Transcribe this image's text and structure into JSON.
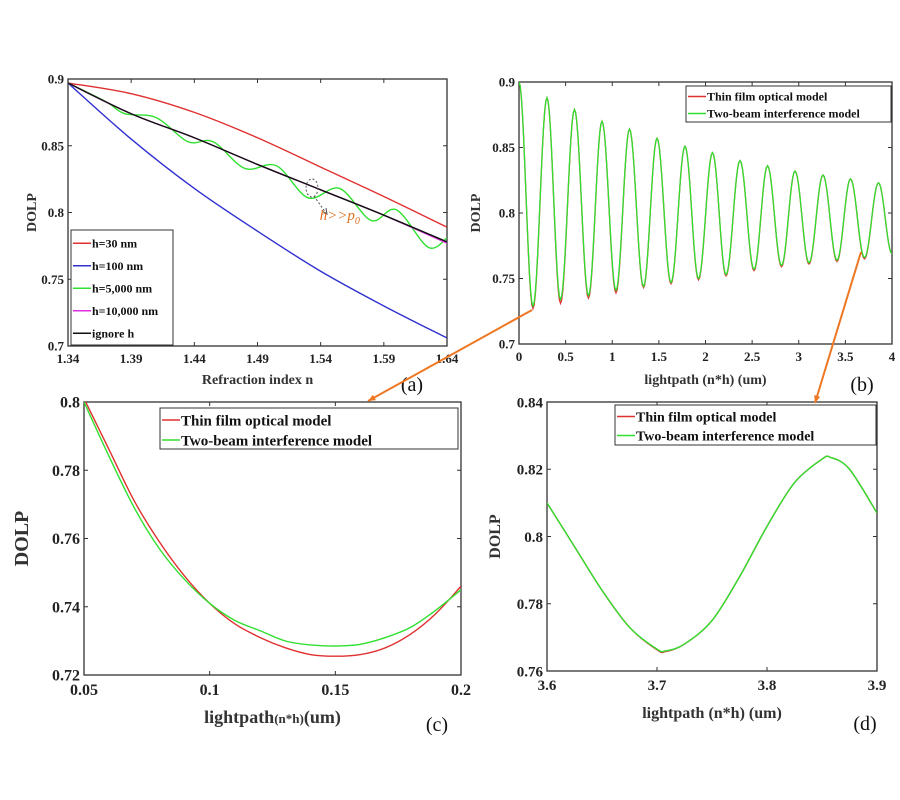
{
  "colors": {
    "red": "#e03030",
    "blue": "#3030d0",
    "green": "#30e030",
    "magenta": "#e030e0",
    "black": "#111111",
    "arrow": "#ee7722"
  },
  "chart_data": [
    {
      "panel": "(a)",
      "type": "line",
      "xlabel": "Refraction index n",
      "ylabel": "DOLP",
      "xlim": [
        1.34,
        1.64
      ],
      "ylim": [
        0.7,
        0.9
      ],
      "xticks": [
        "1.34",
        "1.39",
        "1.44",
        "1.49",
        "1.54",
        "1.59",
        "1.64"
      ],
      "yticks": [
        "0.7",
        "0.75",
        "0.8",
        "0.85",
        "0.9"
      ],
      "legend": "bottom-left",
      "annotation": {
        "text": "h>>p",
        "sub": "0",
        "x": 1.555,
        "y": 0.796
      },
      "series": [
        {
          "name": "h=30 nm",
          "color": "red",
          "x": [
            1.34,
            1.39,
            1.44,
            1.49,
            1.54,
            1.59,
            1.64
          ],
          "y": [
            0.897,
            0.889,
            0.875,
            0.856,
            0.834,
            0.812,
            0.789
          ]
        },
        {
          "name": "h=100 nm",
          "color": "blue",
          "x": [
            1.34,
            1.39,
            1.44,
            1.49,
            1.54,
            1.59,
            1.64
          ],
          "y": [
            0.897,
            0.855,
            0.818,
            0.786,
            0.756,
            0.73,
            0.706
          ]
        },
        {
          "name": "h=5,000 nm",
          "color": "green",
          "x": [
            1.34,
            1.37,
            1.385,
            1.41,
            1.435,
            1.455,
            1.48,
            1.505,
            1.53,
            1.555,
            1.58,
            1.6,
            1.625,
            1.64
          ],
          "y": [
            0.897,
            0.883,
            0.874,
            0.871,
            0.853,
            0.853,
            0.833,
            0.835,
            0.811,
            0.818,
            0.794,
            0.802,
            0.774,
            0.781
          ]
        },
        {
          "name": "h=10,000 nm",
          "color": "magenta",
          "x": [
            1.34,
            1.39,
            1.44,
            1.49,
            1.54,
            1.59,
            1.64
          ],
          "y": [
            0.897,
            0.874,
            0.856,
            0.836,
            0.817,
            0.798,
            0.777
          ]
        },
        {
          "name": "ignore h",
          "color": "black",
          "x": [
            1.34,
            1.39,
            1.44,
            1.49,
            1.54,
            1.59,
            1.64
          ],
          "y": [
            0.897,
            0.874,
            0.856,
            0.836,
            0.817,
            0.798,
            0.778
          ]
        }
      ]
    },
    {
      "panel": "(b)",
      "type": "line",
      "xlabel": "lightpath (n*h) (um)",
      "ylabel": "DOLP",
      "xlim": [
        0,
        4
      ],
      "ylim": [
        0.7,
        0.9
      ],
      "xticks": [
        "0",
        "0.5",
        "1",
        "1.5",
        "2",
        "2.5",
        "3",
        "3.5",
        "4"
      ],
      "yticks": [
        "0.7",
        "0.75",
        "0.8",
        "0.85",
        "0.9"
      ],
      "legend": "top-right",
      "extrema_x": [
        0,
        0.15,
        0.3,
        0.445,
        0.595,
        0.745,
        0.89,
        1.04,
        1.185,
        1.335,
        1.48,
        1.63,
        1.78,
        1.925,
        2.075,
        2.22,
        2.37,
        2.52,
        2.665,
        2.815,
        2.96,
        3.11,
        3.26,
        3.41,
        3.555,
        3.705,
        3.855,
        4.0
      ],
      "series": [
        {
          "name": "Thin film optical model",
          "color": "red",
          "extrema_y": [
            0.9,
            0.727,
            0.888,
            0.731,
            0.879,
            0.735,
            0.87,
            0.739,
            0.864,
            0.743,
            0.857,
            0.746,
            0.851,
            0.749,
            0.846,
            0.752,
            0.84,
            0.756,
            0.836,
            0.759,
            0.832,
            0.761,
            0.829,
            0.763,
            0.826,
            0.765,
            0.823,
            0.769
          ]
        },
        {
          "name": "Two-beam interference model",
          "color": "green",
          "extrema_y": [
            0.9,
            0.729,
            0.888,
            0.734,
            0.879,
            0.737,
            0.87,
            0.741,
            0.864,
            0.744,
            0.857,
            0.747,
            0.851,
            0.75,
            0.846,
            0.753,
            0.84,
            0.757,
            0.836,
            0.76,
            0.832,
            0.762,
            0.829,
            0.764,
            0.826,
            0.766,
            0.823,
            0.769
          ]
        }
      ]
    },
    {
      "panel": "(c)",
      "type": "line",
      "xlabel": "lightpath",
      "xlabel_small": "(n*h)",
      "xlabel_unit": "(um)",
      "ylabel": "DOLP",
      "xlim": [
        0.05,
        0.2
      ],
      "ylim": [
        0.72,
        0.8
      ],
      "xticks": [
        "0.05",
        "0.1",
        "0.15",
        "0.2"
      ],
      "yticks": [
        "0.72",
        "0.74",
        "0.76",
        "0.78",
        "0.8"
      ],
      "legend": "top-right",
      "series": [
        {
          "name": "Thin film optical model",
          "color": "red",
          "x": [
            0.05,
            0.06,
            0.07,
            0.08,
            0.09,
            0.1,
            0.11,
            0.12,
            0.13,
            0.14,
            0.15,
            0.16,
            0.17,
            0.18,
            0.19,
            0.2
          ],
          "y": [
            0.801,
            0.786,
            0.771,
            0.759,
            0.749,
            0.741,
            0.735,
            0.731,
            0.728,
            0.726,
            0.7255,
            0.726,
            0.728,
            0.732,
            0.738,
            0.746
          ]
        },
        {
          "name": "Two-beam interference model",
          "color": "green",
          "x": [
            0.05,
            0.06,
            0.07,
            0.08,
            0.09,
            0.1,
            0.11,
            0.12,
            0.13,
            0.14,
            0.15,
            0.16,
            0.17,
            0.18,
            0.19,
            0.2
          ],
          "y": [
            0.8,
            0.784,
            0.769,
            0.757,
            0.748,
            0.741,
            0.736,
            0.733,
            0.73,
            0.7288,
            0.7285,
            0.729,
            0.731,
            0.734,
            0.739,
            0.745
          ]
        }
      ]
    },
    {
      "panel": "(d)",
      "type": "line",
      "xlabel": "lightpath (n*h) (um)",
      "ylabel": "DOLP",
      "xlim": [
        3.6,
        3.9
      ],
      "ylim": [
        0.76,
        0.84
      ],
      "xticks": [
        "3.6",
        "3.7",
        "3.8",
        "3.9"
      ],
      "yticks": [
        "0.76",
        "0.78",
        "0.8",
        "0.82",
        "0.84"
      ],
      "legend": "top-right",
      "series": [
        {
          "name": "Thin film optical model",
          "color": "red",
          "x": [
            3.6,
            3.625,
            3.65,
            3.675,
            3.7,
            3.708,
            3.725,
            3.75,
            3.775,
            3.8,
            3.825,
            3.85,
            3.858,
            3.875,
            3.9
          ],
          "y": [
            0.81,
            0.797,
            0.784,
            0.773,
            0.7663,
            0.7658,
            0.768,
            0.775,
            0.788,
            0.803,
            0.816,
            0.823,
            0.8235,
            0.82,
            0.807
          ]
        },
        {
          "name": "Two-beam interference model",
          "color": "green",
          "x": [
            3.6,
            3.625,
            3.65,
            3.675,
            3.7,
            3.708,
            3.725,
            3.75,
            3.775,
            3.8,
            3.825,
            3.85,
            3.858,
            3.875,
            3.9
          ],
          "y": [
            0.81,
            0.797,
            0.784,
            0.773,
            0.7665,
            0.766,
            0.768,
            0.775,
            0.788,
            0.803,
            0.816,
            0.823,
            0.8235,
            0.82,
            0.807
          ]
        }
      ]
    }
  ]
}
